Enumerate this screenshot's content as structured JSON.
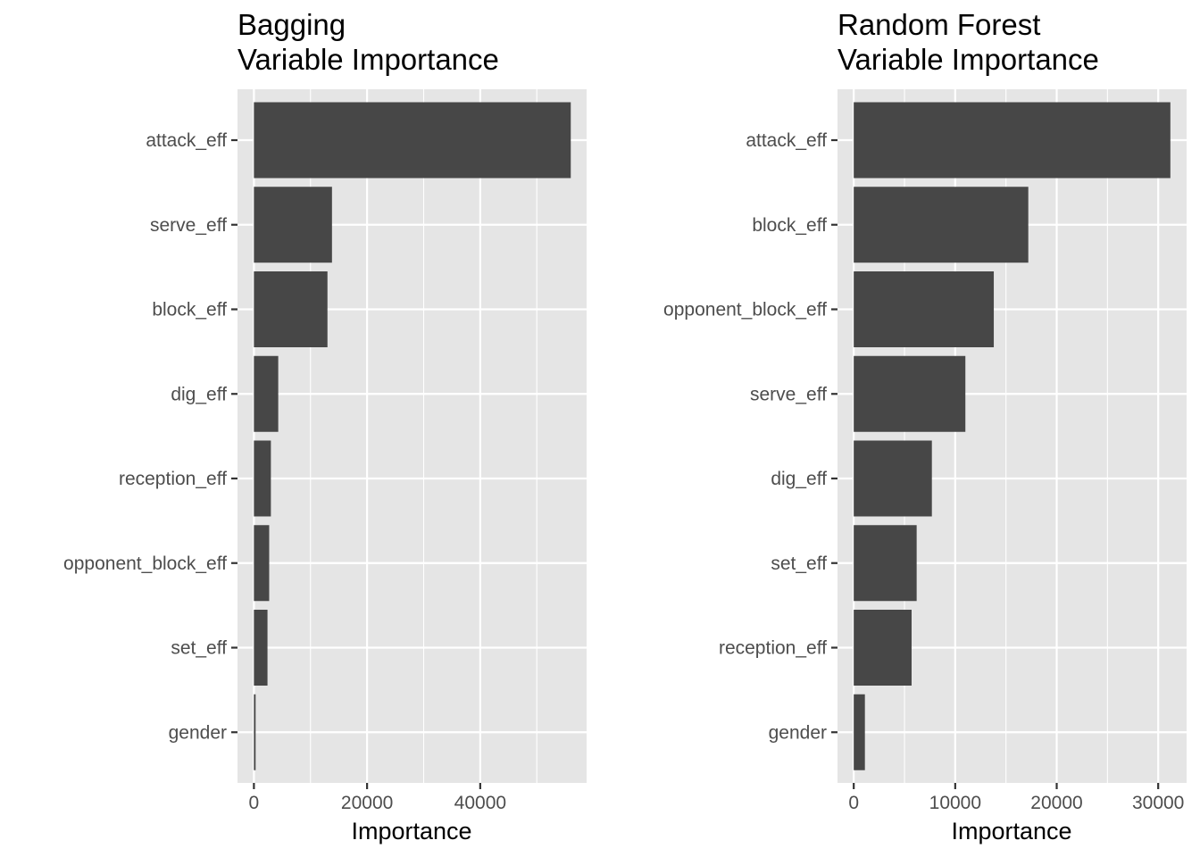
{
  "chart_data": [
    {
      "type": "bar",
      "orientation": "horizontal",
      "title": "Bagging",
      "subtitle": "Variable Importance",
      "xlabel": "Importance",
      "ylabel": "",
      "categories": [
        "attack_eff",
        "serve_eff",
        "block_eff",
        "dig_eff",
        "reception_eff",
        "opponent_block_eff",
        "set_eff",
        "gender"
      ],
      "values": [
        56000,
        13800,
        13000,
        4300,
        3000,
        2700,
        2400,
        300
      ],
      "xlim": [
        -2900,
        58800
      ],
      "xticks": [
        0,
        20000,
        40000
      ],
      "xtick_labels": [
        "0",
        "20000",
        "40000"
      ],
      "x_minor": [
        10000,
        30000,
        50000
      ],
      "bar_color": "#474747",
      "panel_color": "#e5e5e5",
      "grid": true
    },
    {
      "type": "bar",
      "orientation": "horizontal",
      "title": "Random Forest",
      "subtitle": "Variable Importance",
      "xlabel": "Importance",
      "ylabel": "",
      "categories": [
        "attack_eff",
        "block_eff",
        "opponent_block_eff",
        "serve_eff",
        "dig_eff",
        "set_eff",
        "reception_eff",
        "gender"
      ],
      "values": [
        31200,
        17200,
        13800,
        11000,
        7700,
        6200,
        5700,
        1100
      ],
      "xlim": [
        -1600,
        32800
      ],
      "xticks": [
        0,
        10000,
        20000,
        30000
      ],
      "xtick_labels": [
        "0",
        "10000",
        "20000",
        "30000"
      ],
      "x_minor": [
        5000,
        15000,
        25000
      ],
      "bar_color": "#474747",
      "panel_color": "#e5e5e5",
      "grid": true
    }
  ]
}
